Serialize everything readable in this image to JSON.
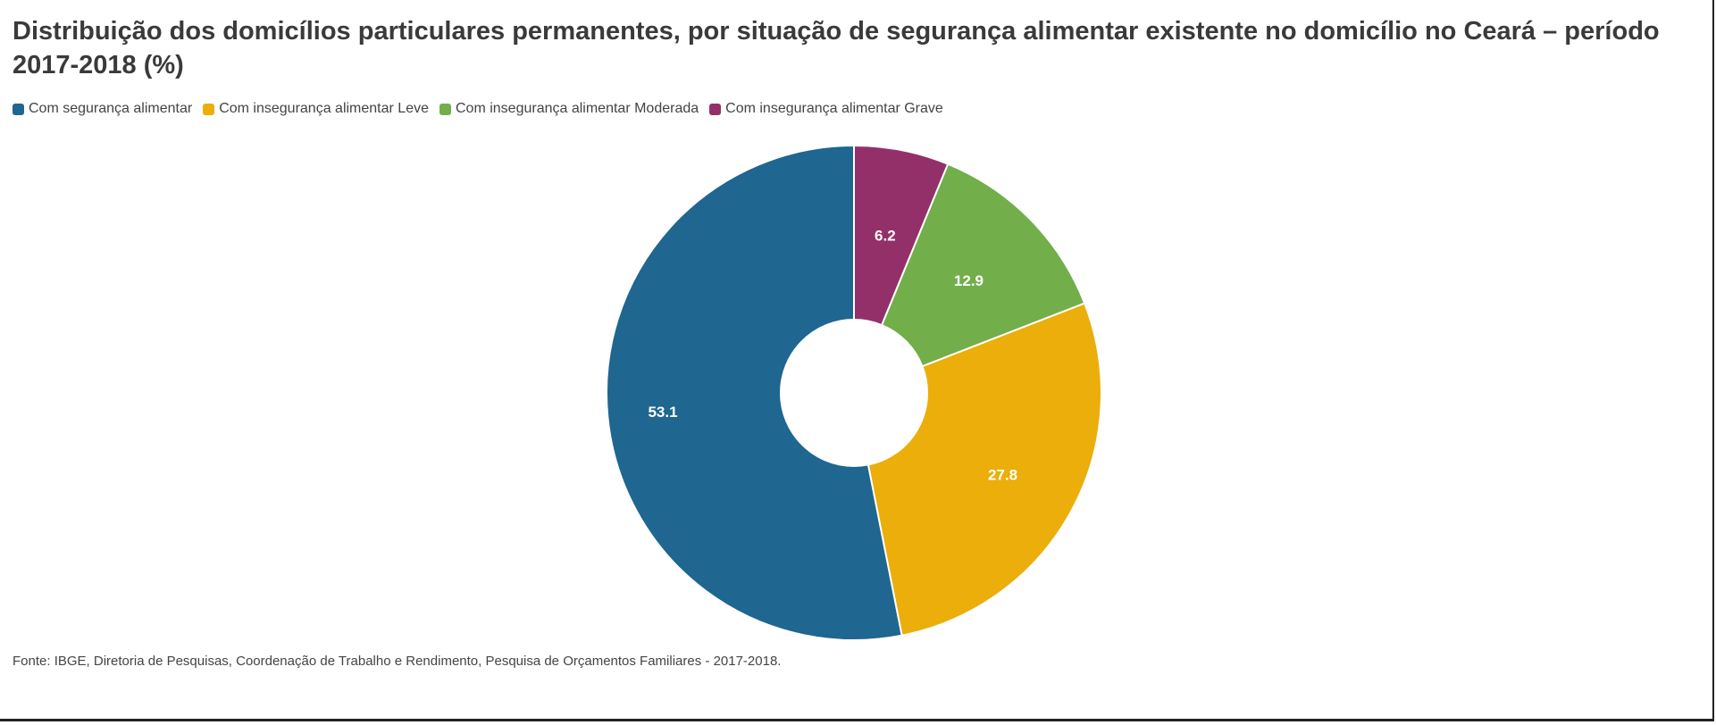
{
  "title": "Distribuição dos domicílios particulares permanentes, por situação de segurança alimentar existente no domicílio no Ceará – período 2017-2018 (%)",
  "source": "Fonte: IBGE, Diretoria de Pesquisas, Coordenação de Trabalho e Rendimento, Pesquisa de Orçamentos Familiares - 2017-2018.",
  "chart_data": {
    "type": "pie",
    "variant": "donut",
    "title": "Distribuição dos domicílios particulares permanentes, por situação de segurança alimentar existente no domicílio no Ceará – período 2017-2018 (%)",
    "legend_position": "top-left",
    "slices_order": "clockwise from top",
    "categories": [
      "Com insegurança alimentar Grave",
      "Com insegurança alimentar Moderada",
      "Com insegurança alimentar Leve",
      "Com segurança alimentar"
    ],
    "values": [
      6.2,
      12.9,
      27.8,
      53.1
    ],
    "labels": [
      "6.2",
      "12.9",
      "27.8",
      "53.1"
    ],
    "colors": [
      "#93306a",
      "#72ae49",
      "#ebae0a",
      "#1f6690"
    ]
  },
  "legend": [
    {
      "label": "Com segurança alimentar",
      "color": "#1f6690"
    },
    {
      "label": "Com insegurança alimentar Leve",
      "color": "#ebae0a"
    },
    {
      "label": "Com insegurança alimentar Moderada",
      "color": "#72ae49"
    },
    {
      "label": "Com insegurança alimentar Grave",
      "color": "#93306a"
    }
  ]
}
